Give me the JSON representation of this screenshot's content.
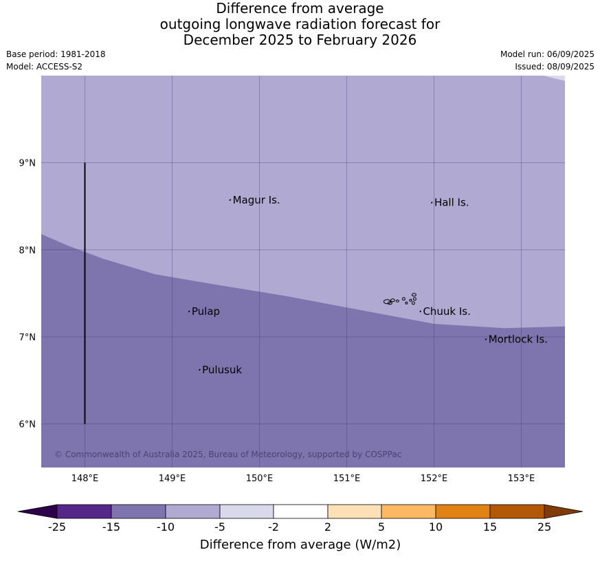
{
  "title": {
    "line1": "Difference from average",
    "line2": "outgoing longwave radiation forecast for",
    "line3": "December 2025 to February 2026"
  },
  "meta": {
    "base_period": "Base period: 1981-2018",
    "model": "Model: ACCESS-S2",
    "model_run": "Model run: 06/09/2025",
    "issued": "Issued: 08/09/2025"
  },
  "map": {
    "lon_range": [
      147.5,
      153.5
    ],
    "lat_range": [
      5.5,
      10.0
    ],
    "lon_ticks": [
      "148°E",
      "149°E",
      "150°E",
      "151°E",
      "152°E",
      "153°E"
    ],
    "lat_ticks": [
      "6°N",
      "7°N",
      "8°N",
      "9°N"
    ],
    "places": [
      {
        "name": "Magur Is.",
        "lon": 149.67,
        "lat": 8.58
      },
      {
        "name": "Hall Is.",
        "lon": 151.98,
        "lat": 8.55
      },
      {
        "name": "Pulap",
        "lon": 149.2,
        "lat": 7.3
      },
      {
        "name": "Chuuk Is.",
        "lon": 151.85,
        "lat": 7.3
      },
      {
        "name": "Mortlock Is.",
        "lon": 152.6,
        "lat": 6.98
      },
      {
        "name": "Pulusuk",
        "lon": 149.32,
        "lat": 6.63
      }
    ],
    "boundary_line": {
      "lon": 148.0,
      "lat_from": 6.0,
      "lat_to": 9.0
    },
    "category_boundary": [
      [
        147.5,
        8.18
      ],
      [
        147.8,
        8.05
      ],
      [
        148.2,
        7.9
      ],
      [
        148.8,
        7.72
      ],
      [
        149.5,
        7.6
      ],
      [
        150.3,
        7.47
      ],
      [
        151.2,
        7.3
      ],
      [
        152.0,
        7.15
      ],
      [
        152.8,
        7.1
      ],
      [
        153.5,
        7.12
      ]
    ],
    "colors": {
      "range_-15_-10": "#7f75ae",
      "range_-10_-5": "#b0aad2",
      "range_-5_-2": "#dadbea"
    },
    "copyright": "© Commonwealth of Australia 2025, Bureau of Meteorology, supported by COSPPac"
  },
  "colorbar": {
    "label": "Difference from average (W/m2)",
    "ticks": [
      "-25",
      "-15",
      "-10",
      "-5",
      "-2",
      "2",
      "5",
      "10",
      "15",
      "25"
    ],
    "colors": [
      "#2d004b",
      "#542788",
      "#7f75ae",
      "#b0aad2",
      "#d8daeb",
      "#ffffff",
      "#fee0b6",
      "#fdb863",
      "#e08214",
      "#b35806",
      "#7f3b08"
    ]
  }
}
